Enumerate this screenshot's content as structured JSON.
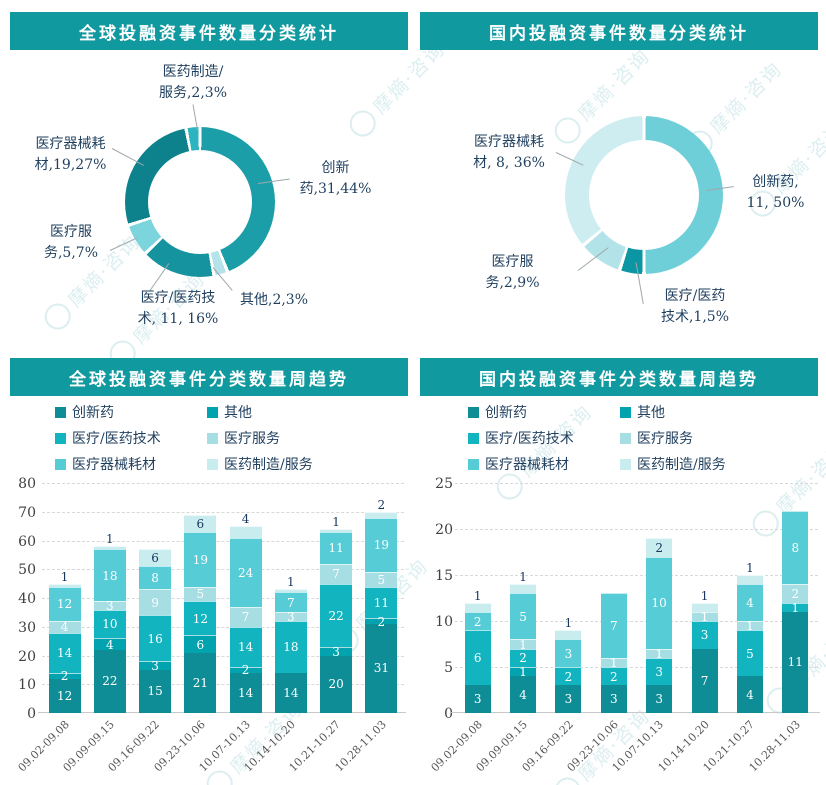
{
  "watermark": {
    "text": "摩熵·咨询",
    "icon": "logo-circle",
    "color": "#dceef0"
  },
  "theme": {
    "header_bg": "#10999f",
    "header_text": "#ffffff",
    "label_dark": "#1f3f5e",
    "value_dark": "#17375e"
  },
  "chart_data": [
    {
      "type": "pie",
      "subtype": "donut",
      "title": "全球投融资事件数量分类统计",
      "segments": [
        {
          "name": "创新药",
          "value": 31,
          "pct": 44,
          "color": "#1c9ea9",
          "label": "创新\n药,31,44%"
        },
        {
          "name": "其他",
          "value": 2,
          "pct": 3,
          "color": "#b5e3e9",
          "label": "其他,2,3%"
        },
        {
          "name": "医疗/医药技术",
          "value": 11,
          "pct": 16,
          "color": "#15939e",
          "label": "医疗/医药技\n术, 11, 16%"
        },
        {
          "name": "医疗服务",
          "value": 5,
          "pct": 7,
          "color": "#7cd4dd",
          "label": "医疗服\n务,5,7%"
        },
        {
          "name": "医疗器械耗材",
          "value": 19,
          "pct": 27,
          "color": "#0d828d",
          "label": "医疗器械耗\n材,19,27%"
        },
        {
          "name": "医药制造/服务",
          "value": 2,
          "pct": 3,
          "color": "#2cb4c1",
          "label": "医药制造/\n服务,2,3%"
        }
      ]
    },
    {
      "type": "pie",
      "subtype": "donut",
      "title": "国内投融资事件数量分类统计",
      "segments": [
        {
          "name": "创新药",
          "value": 11,
          "pct": 50,
          "color": "#6fcfd9",
          "label": "创新药,\n11, 50%"
        },
        {
          "name": "医疗/医药技术",
          "value": 1,
          "pct": 5,
          "color": "#0c95a3",
          "label": "医疗/医药\n技术,1,5%"
        },
        {
          "name": "医疗服务",
          "value": 2,
          "pct": 9,
          "color": "#b2e3e9",
          "label": "医疗服\n务,2,9%"
        },
        {
          "name": "医疗器械耗材",
          "value": 8,
          "pct": 36,
          "color": "#cdedf0",
          "label": "医疗器械耗\n材, 8, 36%"
        }
      ]
    },
    {
      "type": "bar",
      "subtype": "stacked",
      "title": "全球投融资事件分类数量周趋势",
      "ylim": [
        0,
        80
      ],
      "yticks": [
        0,
        10,
        20,
        30,
        40,
        50,
        60,
        70,
        80
      ],
      "grid": "dashed-horizontal",
      "legend_position": "top",
      "categories": [
        "09.02-09.08",
        "09.09-09.15",
        "09.16-09.22",
        "09.23-10.06",
        "10.07-10.13",
        "10.14-10.20",
        "10.21-10.27",
        "10.28-11.03"
      ],
      "series": [
        {
          "name": "创新药",
          "color": "#0e8d97",
          "value_label": "light",
          "values": [
            12,
            22,
            15,
            21,
            14,
            14,
            20,
            31
          ]
        },
        {
          "name": "其他",
          "color": "#00a3ae",
          "value_label": "light",
          "values": [
            2,
            4,
            3,
            6,
            2,
            0,
            3,
            2
          ]
        },
        {
          "name": "医疗/医药技术",
          "color": "#12b4c0",
          "value_label": "light",
          "values": [
            14,
            10,
            16,
            12,
            14,
            18,
            22,
            11
          ]
        },
        {
          "name": "医疗服务",
          "color": "#a6dee4",
          "value_label": "light",
          "values": [
            4,
            3,
            9,
            5,
            7,
            3,
            7,
            5
          ]
        },
        {
          "name": "医疗器械耗材",
          "color": "#56ccd6",
          "value_label": "light",
          "values": [
            12,
            18,
            8,
            19,
            24,
            7,
            11,
            19
          ]
        },
        {
          "name": "医药制造/服务",
          "color": "#c9ecef",
          "value_label": "dark",
          "values": [
            1,
            1,
            6,
            6,
            4,
            1,
            1,
            2
          ]
        }
      ]
    },
    {
      "type": "bar",
      "subtype": "stacked",
      "title": "国内投融资事件分类数量周趋势",
      "ylim": [
        0,
        25
      ],
      "yticks": [
        0,
        5,
        10,
        15,
        20,
        25
      ],
      "grid": "dashed-horizontal",
      "legend_position": "top",
      "categories": [
        "09.02-09.08",
        "09.09-09.15",
        "09.16-09.22",
        "09.23-10.06",
        "10.07-10.13",
        "10.14-10.20",
        "10.21-10.27",
        "10.28-11.03"
      ],
      "series": [
        {
          "name": "创新药",
          "color": "#0e8d97",
          "value_label": "light",
          "values": [
            3,
            4,
            3,
            3,
            3,
            7,
            4,
            11
          ]
        },
        {
          "name": "其他",
          "color": "#00a3ae",
          "value_label": "light",
          "values": [
            0,
            1,
            0,
            0,
            0,
            0,
            0,
            0
          ]
        },
        {
          "name": "医疗/医药技术",
          "color": "#12b4c0",
          "value_label": "light",
          "values": [
            6,
            2,
            2,
            2,
            3,
            3,
            5,
            1
          ]
        },
        {
          "name": "医疗服务",
          "color": "#a6dee4",
          "value_label": "light",
          "values": [
            0,
            1,
            0,
            1,
            1,
            1,
            1,
            2
          ]
        },
        {
          "name": "医疗器械耗材",
          "color": "#56ccd6",
          "value_label": "light",
          "values": [
            2,
            5,
            3,
            7,
            10,
            0,
            4,
            8
          ]
        },
        {
          "name": "医药制造/服务",
          "color": "#c9ecef",
          "value_label": "dark",
          "values": [
            1,
            1,
            1,
            0,
            2,
            1,
            1,
            0
          ]
        }
      ]
    }
  ]
}
